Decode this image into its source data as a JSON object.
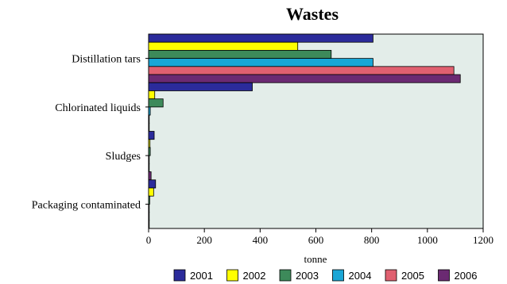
{
  "chart_data": {
    "type": "bar",
    "orientation": "horizontal",
    "title": "Wastes",
    "xlabel": "tonne",
    "ylabel": "",
    "xlim": [
      0,
      1200
    ],
    "x_ticks": [
      0,
      200,
      400,
      600,
      800,
      1000,
      1200
    ],
    "categories": [
      "Distillation tars",
      "Chlorinated liquids",
      "Sludges",
      "Packaging contaminated"
    ],
    "series": [
      {
        "name": "2001",
        "color": "#2b2b9b",
        "values": [
          805,
          372,
          20,
          25
        ]
      },
      {
        "name": "2002",
        "color": "#ffff00",
        "values": [
          535,
          22,
          5,
          18
        ]
      },
      {
        "name": "2003",
        "color": "#3d8a5a",
        "values": [
          655,
          52,
          6,
          4
        ]
      },
      {
        "name": "2004",
        "color": "#1aa6d6",
        "values": [
          805,
          6,
          1,
          1
        ]
      },
      {
        "name": "2005",
        "color": "#e06070",
        "values": [
          1095,
          1,
          1,
          1
        ]
      },
      {
        "name": "2006",
        "color": "#6b2a72",
        "values": [
          1118,
          1,
          9,
          1
        ]
      }
    ],
    "grid": false,
    "legend_position": "bottom",
    "plot_background": "#e3ede9"
  }
}
